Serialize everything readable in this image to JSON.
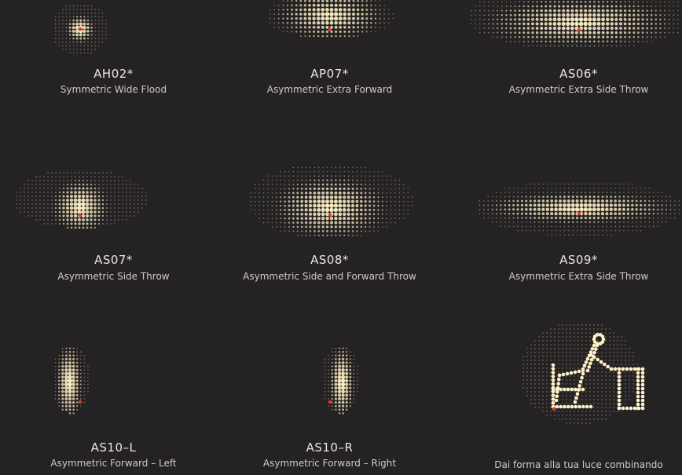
{
  "palette": {
    "background": "#252223",
    "dot_bright": "#fff2c8",
    "dot_dim": "#d9cfb0",
    "marker": "#d83a2e"
  },
  "patterns": [
    {
      "code": "AH02*",
      "description": "Symmetric Wide Flood",
      "shape": "small-round"
    },
    {
      "code": "AP07*",
      "description": "Asymmetric Extra Forward",
      "shape": "wide-forward"
    },
    {
      "code": "AS06*",
      "description": "Asymmetric Extra Side Throw",
      "shape": "extra-wide"
    },
    {
      "code": "AS07*",
      "description": "Asymmetric Side Throw",
      "shape": "side-throw"
    },
    {
      "code": "AS08*",
      "description": "Asymmetric Side and Forward Throw",
      "shape": "side-forward"
    },
    {
      "code": "AS09*",
      "description": "Asymmetric Extra Side Throw",
      "shape": "extra-side-narrow"
    },
    {
      "code": "AS10–L",
      "description": "Asymmetric Forward – Left",
      "shape": "forward-left"
    },
    {
      "code": "AS10–R",
      "description": "Asymmetric Forward – Right",
      "shape": "forward-right"
    },
    {
      "code": "",
      "description": "Dai forma alla tua luce combinando",
      "shape": "custom-figure"
    }
  ]
}
